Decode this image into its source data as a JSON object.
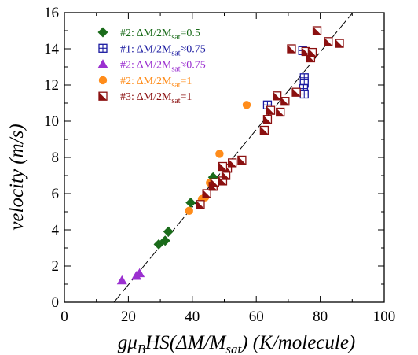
{
  "chart_data": {
    "type": "scatter",
    "xlabel": "gμ_BHS(ΔM/M_sat)  (K/molecule)",
    "xlabel_parts": {
      "prefix": "gμ",
      "sub1": "B",
      "mid": "HS(ΔM/M",
      "sub2": "sat",
      "suffix": ")  (K/molecule)"
    },
    "ylabel": "velocity  (m/s)",
    "xlim": [
      0,
      100
    ],
    "ylim": [
      0,
      16
    ],
    "x_ticks": [
      "0",
      "20",
      "40",
      "60",
      "80",
      "100"
    ],
    "y_ticks": [
      "0",
      "2",
      "4",
      "6",
      "8",
      "10",
      "12",
      "14",
      "16"
    ],
    "x_tick_values": [
      0,
      20,
      40,
      60,
      80,
      100
    ],
    "y_tick_values": [
      0,
      2,
      4,
      6,
      8,
      10,
      12,
      14,
      16
    ],
    "grid": false,
    "legend_placement": "top-left",
    "series": [
      {
        "name": "#2: ΔM/2M_sat=0.5",
        "label_parts": {
          "main": "#2: ΔM/2M",
          "sub": "sat",
          "tail": "=0.5"
        },
        "marker": "diamond",
        "color": "#1a6b1a",
        "points": [
          [
            29.5,
            3.2
          ],
          [
            31.5,
            3.4
          ],
          [
            32.5,
            3.9
          ],
          [
            39.5,
            5.5
          ],
          [
            46.5,
            6.9
          ]
        ]
      },
      {
        "name": "#1: ΔM/2M_sat≈0.75",
        "label_parts": {
          "main": "#1: ΔM/2M",
          "sub": "sat",
          "tail": "≈0.75"
        },
        "marker": "square-crosshair",
        "color": "#1a1aa0",
        "points": [
          [
            63.5,
            10.9
          ],
          [
            74.5,
            13.9
          ],
          [
            75.0,
            12.4
          ],
          [
            75.0,
            12.1
          ],
          [
            74.8,
            11.8
          ],
          [
            75.0,
            11.5
          ]
        ]
      },
      {
        "name": "#2: ΔM/2M_sat≈0.75",
        "label_parts": {
          "main": "#2: ΔM/2M",
          "sub": "sat",
          "tail": "≈0.75"
        },
        "marker": "triangle",
        "color": "#9b30d0",
        "points": [
          [
            18.0,
            1.2
          ],
          [
            22.5,
            1.45
          ],
          [
            23.5,
            1.6
          ]
        ]
      },
      {
        "name": "#2: ΔM/2M_sat=1",
        "label_parts": {
          "main": "#2: ΔM/2M",
          "sub": "sat",
          "tail": "=1"
        },
        "marker": "circle",
        "color": "#ff8c1a",
        "points": [
          [
            39.0,
            5.05
          ],
          [
            43.0,
            5.7
          ],
          [
            44.0,
            5.8
          ],
          [
            45.5,
            6.6
          ],
          [
            48.5,
            8.2
          ],
          [
            57.0,
            10.9
          ]
        ]
      },
      {
        "name": "#3: ΔM/2M_sat=1",
        "label_parts": {
          "main": "#3: ΔM/2M",
          "sub": "sat",
          "tail": "=1"
        },
        "marker": "half-square",
        "color": "#8b1010",
        "points": [
          [
            42.5,
            5.4
          ],
          [
            44.5,
            6.0
          ],
          [
            46.5,
            6.4
          ],
          [
            47.0,
            6.6
          ],
          [
            49.5,
            6.7
          ],
          [
            50.5,
            7.0
          ],
          [
            51.0,
            7.4
          ],
          [
            49.5,
            7.5
          ],
          [
            52.5,
            7.7
          ],
          [
            55.5,
            7.85
          ],
          [
            62.5,
            9.5
          ],
          [
            63.5,
            10.1
          ],
          [
            64.5,
            10.6
          ],
          [
            66.5,
            11.4
          ],
          [
            67.5,
            10.5
          ],
          [
            69.0,
            11.1
          ],
          [
            72.5,
            11.6
          ],
          [
            71.0,
            14.0
          ],
          [
            75.5,
            13.85
          ],
          [
            77.0,
            13.5
          ],
          [
            77.5,
            13.8
          ],
          [
            79.0,
            15.0
          ],
          [
            82.5,
            14.4
          ],
          [
            86.0,
            14.3
          ]
        ]
      }
    ],
    "fit_line": {
      "style": "dashed",
      "from": [
        15.5,
        0
      ],
      "to": [
        92.5,
        16.5
      ]
    }
  }
}
